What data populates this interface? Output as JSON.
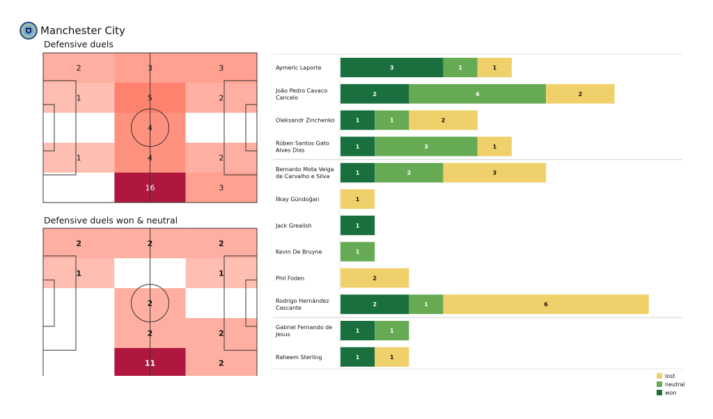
{
  "header": {
    "team_name": "Manchester City",
    "logo_icon": "manchester-city-crest-icon"
  },
  "colors": {
    "won": "#196f3d",
    "neutral": "#66ab54",
    "lost": "#f0d06b"
  },
  "chart_data": [
    {
      "type": "heatmap",
      "title": "Defensive duels",
      "rows": 5,
      "cols": 3,
      "values": [
        [
          2,
          3,
          3
        ],
        [
          1,
          5,
          2
        ],
        [
          0,
          4,
          0
        ],
        [
          1,
          4,
          2
        ],
        [
          0,
          16,
          3
        ]
      ],
      "labels": [
        [
          "2",
          "3",
          "3"
        ],
        [
          "1",
          "5",
          "2"
        ],
        [
          "",
          "4",
          ""
        ],
        [
          "1",
          "4",
          "2"
        ],
        [
          "",
          "16",
          "3"
        ]
      ],
      "bold_labels": false
    },
    {
      "type": "heatmap",
      "title": "Defensive duels won & neutral",
      "rows": 5,
      "cols": 3,
      "values": [
        [
          2,
          2,
          2
        ],
        [
          1,
          0,
          1
        ],
        [
          0,
          2,
          0
        ],
        [
          0,
          2,
          2
        ],
        [
          0,
          11,
          2
        ]
      ],
      "labels": [
        [
          "2",
          "2",
          "2"
        ],
        [
          "1",
          "",
          "1"
        ],
        [
          "",
          "2",
          ""
        ],
        [
          "",
          "2",
          "2"
        ],
        [
          "",
          "11",
          "2"
        ]
      ],
      "bold_labels": true
    },
    {
      "type": "bar",
      "stacked": true,
      "orientation": "horizontal",
      "categories": [
        "Aymeric  Laporte",
        "João Pedro Cavaco\nCancelo",
        "Oleksandr Zinchenko",
        "Rúben  Santos Gato\nAlves Dias",
        "Bernardo Mota Veiga\nde Carvalho e Silva",
        "İlkay Gündoğan",
        "Jack Grealish",
        "Kevin De Bruyne",
        "Phil Foden",
        "Rodrigo Hernández\nCascante",
        "Gabriel Fernando de\nJesus",
        "Raheem Sterling"
      ],
      "series": [
        {
          "name": "won",
          "values": [
            3,
            2,
            1,
            1,
            1,
            0,
            1,
            0,
            0,
            2,
            1,
            1
          ]
        },
        {
          "name": "neutral",
          "values": [
            1,
            4,
            1,
            3,
            2,
            0,
            0,
            1,
            0,
            1,
            1,
            0
          ]
        },
        {
          "name": "lost",
          "values": [
            1,
            2,
            2,
            1,
            3,
            1,
            0,
            0,
            2,
            6,
            0,
            1
          ]
        }
      ],
      "legend_position": "bottom-right",
      "group_separators_after": [
        3,
        9
      ]
    }
  ]
}
